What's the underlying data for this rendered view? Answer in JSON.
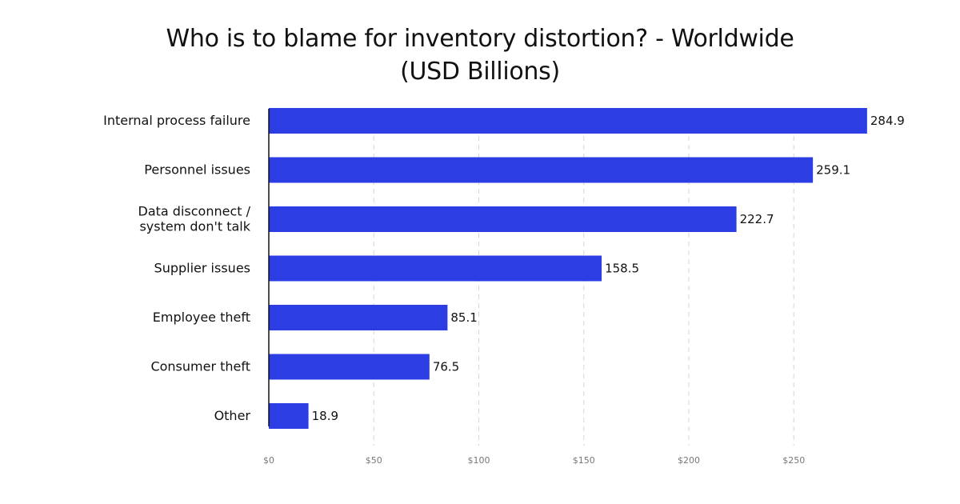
{
  "chart_data": {
    "type": "bar",
    "orientation": "horizontal",
    "title": "Who is to blame for inventory distortion? - Worldwide",
    "subtitle": "(USD Billions)",
    "categories": [
      "Internal process failure",
      "Personnel issues",
      "Data disconnect / system don't talk",
      "Supplier issues",
      "Employee theft",
      "Consumer theft",
      "Other"
    ],
    "category_lines": [
      [
        "Internal process failure"
      ],
      [
        "Personnel issues"
      ],
      [
        "Data disconnect /",
        "system don't talk"
      ],
      [
        "Supplier issues"
      ],
      [
        "Employee theft"
      ],
      [
        "Consumer theft"
      ],
      [
        "Other"
      ]
    ],
    "values": [
      284.9,
      259.1,
      222.7,
      158.5,
      85.1,
      76.5,
      18.9
    ],
    "value_labels": [
      "284.9",
      "259.1",
      "222.7",
      "158.5",
      "85.1",
      "76.5",
      "18.9"
    ],
    "x_ticks": [
      0,
      50,
      100,
      150,
      200,
      250
    ],
    "x_tick_labels": [
      "$0",
      "$50",
      "$100",
      "$150",
      "$200",
      "$250"
    ],
    "xlim": [
      0,
      288
    ],
    "xlabel": "",
    "ylabel": "",
    "grid": "vertical dashed",
    "legend": "none",
    "bar_color": "#2C3EE3"
  }
}
